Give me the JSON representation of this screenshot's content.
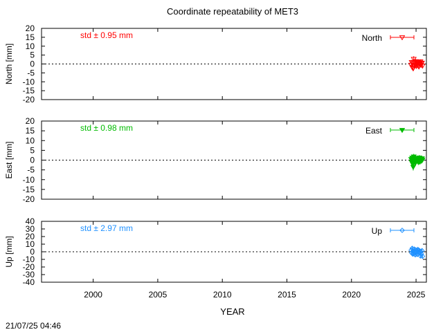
{
  "title": "Coordinate repeatability of MET3",
  "footer_timestamp": "21/07/25 04:46",
  "chart_data": {
    "type": "scatter",
    "title": "Coordinate repeatability of MET3",
    "xlabel": "YEAR",
    "xlim": [
      1996,
      2025.8
    ],
    "x_ticks": [
      2000,
      2005,
      2010,
      2015,
      2020,
      2025
    ],
    "grid": false,
    "legend_position": "top-right",
    "panels": [
      {
        "name": "North",
        "ylabel": "North [mm]",
        "ylim": [
          -20,
          20
        ],
        "y_ticks": [
          20,
          15,
          10,
          5,
          0,
          -5,
          -10,
          -15,
          -20
        ],
        "std_label": "std ± 0.95 mm",
        "color": "#ff0000",
        "marker": "triangle-down-open",
        "x": [
          2024.62,
          2024.66,
          2024.7,
          2024.74,
          2024.78,
          2024.82,
          2024.86,
          2024.9,
          2024.94,
          2024.98,
          2025.02,
          2025.06,
          2025.1,
          2025.14,
          2025.18,
          2025.22,
          2025.26,
          2025.3,
          2025.34,
          2025.38,
          2025.42,
          2025.46,
          2025.5
        ],
        "y": [
          -0.5,
          1.0,
          -1.8,
          0.5,
          -2.5,
          2.8,
          -1.0,
          0.8,
          -0.3,
          1.5,
          -1.2,
          0.2,
          1.1,
          -0.8,
          0.6,
          -1.5,
          0.9,
          -0.2,
          1.4,
          -0.6,
          0.3,
          0.7,
          -1.0
        ],
        "err": [
          1.2,
          1.3,
          1.4,
          1.2,
          1.5,
          1.6,
          1.3,
          1.2,
          1.1,
          1.3,
          1.4,
          1.2,
          1.3,
          1.2,
          1.1,
          1.4,
          1.2,
          1.3,
          1.2,
          1.1,
          1.3,
          1.2,
          1.4
        ]
      },
      {
        "name": "East",
        "ylabel": "East [mm]",
        "ylim": [
          -20,
          20
        ],
        "y_ticks": [
          20,
          15,
          10,
          5,
          0,
          -5,
          -10,
          -15,
          -20
        ],
        "std_label": "std ± 0.98 mm",
        "color": "#00bb00",
        "marker": "triangle-down-filled",
        "x": [
          2024.62,
          2024.66,
          2024.7,
          2024.74,
          2024.78,
          2024.82,
          2024.86,
          2024.9,
          2024.94,
          2024.98,
          2025.02,
          2025.06,
          2025.1,
          2025.14,
          2025.18,
          2025.22,
          2025.26,
          2025.3,
          2025.34,
          2025.38,
          2025.42,
          2025.46,
          2025.5
        ],
        "y": [
          0.5,
          -1.0,
          1.2,
          -2.0,
          -3.5,
          1.8,
          -0.5,
          0.2,
          -1.5,
          0.8,
          -0.7,
          1.0,
          -0.3,
          0.6,
          -1.1,
          0.4,
          1.3,
          -0.9,
          0.1,
          0.7,
          -0.4,
          0.9,
          0.2
        ],
        "err": [
          1.3,
          1.4,
          1.2,
          1.5,
          1.8,
          1.4,
          1.3,
          1.2,
          1.4,
          1.3,
          1.2,
          1.3,
          1.2,
          1.1,
          1.3,
          1.2,
          1.3,
          1.2,
          1.1,
          1.2,
          1.3,
          1.2,
          1.3
        ]
      },
      {
        "name": "Up",
        "ylabel": "Up [mm]",
        "ylim": [
          -40,
          40
        ],
        "y_ticks": [
          40,
          30,
          20,
          10,
          0,
          -10,
          -20,
          -30,
          -40
        ],
        "std_label": "std ± 2.97 mm",
        "color": "#1e90ff",
        "marker": "diamond-open",
        "x": [
          2024.62,
          2024.66,
          2024.7,
          2024.74,
          2024.78,
          2024.82,
          2024.86,
          2024.9,
          2024.94,
          2024.98,
          2025.02,
          2025.06,
          2025.1,
          2025.14,
          2025.18,
          2025.22,
          2025.26,
          2025.3,
          2025.34,
          2025.38,
          2025.42,
          2025.46,
          2025.5
        ],
        "y": [
          2.0,
          -1.5,
          4.5,
          -3.0,
          1.0,
          -2.5,
          3.5,
          0.5,
          -4.0,
          2.5,
          -1.0,
          1.5,
          -3.5,
          3.0,
          -0.5,
          2.0,
          -2.0,
          1.0,
          -5.5,
          0.0,
          -3.0,
          1.5,
          -6.0
        ],
        "err": [
          2.5,
          2.8,
          2.6,
          2.7,
          2.5,
          2.6,
          2.8,
          2.4,
          2.7,
          2.5,
          2.6,
          2.5,
          2.7,
          2.6,
          2.4,
          2.5,
          2.6,
          2.5,
          2.8,
          2.5,
          2.6,
          2.5,
          2.9
        ]
      }
    ]
  }
}
